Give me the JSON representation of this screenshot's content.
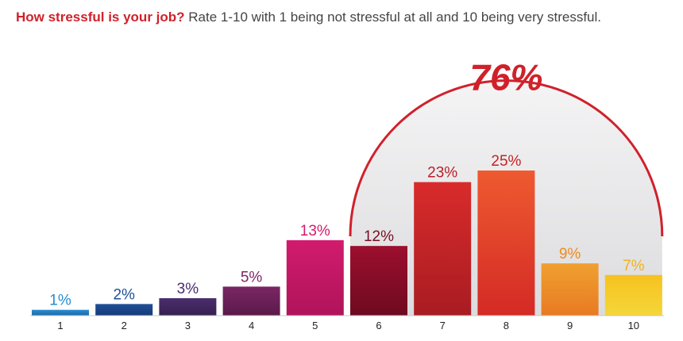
{
  "header": {
    "question": "How stressful is your job?",
    "instruction": "Rate 1-10 with 1 being not stressful at all and 10 being very stressful."
  },
  "chart_data": {
    "type": "bar",
    "categories": [
      "1",
      "2",
      "3",
      "4",
      "5",
      "6",
      "7",
      "8",
      "9",
      "10"
    ],
    "values": [
      1,
      2,
      3,
      5,
      13,
      12,
      23,
      25,
      9,
      7
    ],
    "value_labels": [
      "1%",
      "2%",
      "3%",
      "5%",
      "13%",
      "12%",
      "23%",
      "25%",
      "9%",
      "7%"
    ],
    "ylim": [
      0,
      25
    ],
    "grid": false,
    "bar_colors": [
      [
        "#2a8cd0",
        "#1a6aa8"
      ],
      [
        "#1f4f96",
        "#163a78"
      ],
      [
        "#4b2d6e",
        "#36204f"
      ],
      [
        "#7a2664",
        "#5a1a4a"
      ],
      [
        "#d21b6e",
        "#b0145a"
      ],
      [
        "#9c0f2e",
        "#6e0a1f"
      ],
      [
        "#d92b2b",
        "#a81c22"
      ],
      [
        "#ee5a30",
        "#d42a25"
      ],
      [
        "#f0a030",
        "#e87a22"
      ],
      [
        "#f6c21f",
        "#f5d63a"
      ]
    ],
    "label_colors": [
      "#2a8cd0",
      "#1f4f96",
      "#4b2d6e",
      "#7a2664",
      "#d21b6e",
      "#7a0d22",
      "#b81f25",
      "#c81f22",
      "#ee8a1e",
      "#f0b21a"
    ],
    "annotation": {
      "text": "76%",
      "covers_categories": [
        "6",
        "7",
        "8",
        "9",
        "10"
      ],
      "color": "#d0212b",
      "fill": "#dcdcde"
    }
  }
}
